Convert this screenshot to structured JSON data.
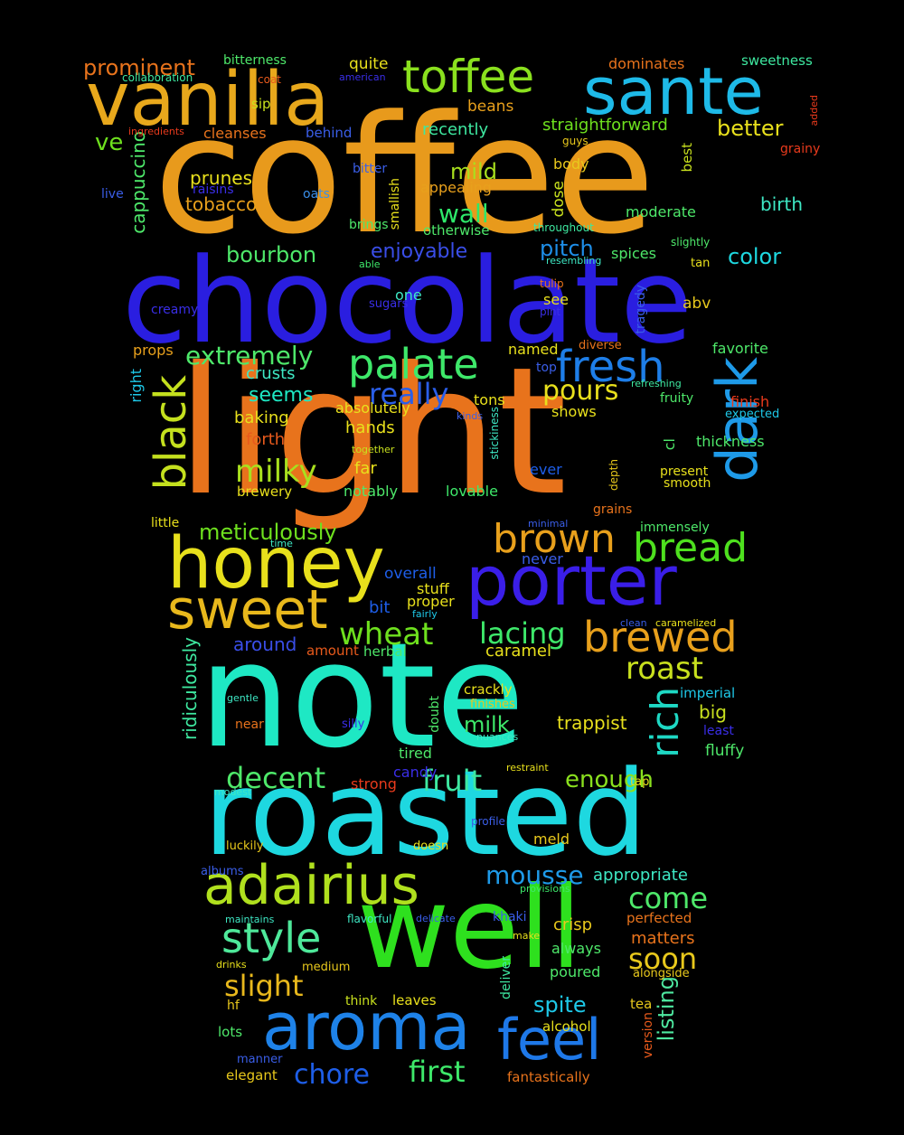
{
  "words": [
    {
      "text": "coffee",
      "color": "#e89a1c"
    },
    {
      "text": "chocolate",
      "color": "#2a1ee0"
    },
    {
      "text": "light",
      "color": "#e8731c"
    },
    {
      "text": "note",
      "color": "#1ee8c4"
    },
    {
      "text": "roasted",
      "color": "#1ed8e0"
    },
    {
      "text": "well",
      "color": "#2ee01e"
    },
    {
      "text": "vanilla",
      "color": "#e8a81c"
    },
    {
      "text": "sante",
      "color": "#1ebae8"
    },
    {
      "text": "toffee",
      "color": "#8ae01e"
    },
    {
      "text": "honey",
      "color": "#e8e01c"
    },
    {
      "text": "porter",
      "color": "#3a1ee8"
    },
    {
      "text": "dark",
      "color": "#1e9ae8"
    },
    {
      "text": "aroma",
      "color": "#1e82e8"
    },
    {
      "text": "adairius",
      "color": "#b0e01e"
    },
    {
      "text": "sweet",
      "color": "#e8b81c"
    },
    {
      "text": "feel",
      "color": "#1e78e8"
    },
    {
      "text": "palate",
      "color": "#3ee86a"
    },
    {
      "text": "brewed",
      "color": "#e8a01c"
    },
    {
      "text": "fresh",
      "color": "#1e7ee8"
    },
    {
      "text": "black",
      "color": "#c4e01e"
    },
    {
      "text": "bread",
      "color": "#4ee01e"
    },
    {
      "text": "brown",
      "color": "#e8a01c"
    },
    {
      "text": "style",
      "color": "#4ee89a"
    },
    {
      "text": "milky",
      "color": "#a8e01e"
    },
    {
      "text": "wheat",
      "color": "#6ee01e"
    },
    {
      "text": "rich",
      "color": "#1ed8c4"
    },
    {
      "text": "roast",
      "color": "#c8e01e"
    },
    {
      "text": "lacing",
      "color": "#3ee86a"
    },
    {
      "text": "come",
      "color": "#4ee86a"
    },
    {
      "text": "soon",
      "color": "#e8c81c"
    },
    {
      "text": "slight",
      "color": "#e8b81c"
    },
    {
      "text": "decent",
      "color": "#4ee86a"
    },
    {
      "text": "mousse",
      "color": "#1e9ae8"
    },
    {
      "text": "fruit",
      "color": "#3ee8a0"
    },
    {
      "text": "first",
      "color": "#3ee86a"
    },
    {
      "text": "chore",
      "color": "#1e5ee8"
    },
    {
      "text": "extremely",
      "color": "#4ee86a"
    },
    {
      "text": "really",
      "color": "#2a5ee8"
    },
    {
      "text": "pours",
      "color": "#e8e01c"
    },
    {
      "text": "wall",
      "color": "#2ee86a"
    },
    {
      "text": "enough",
      "color": "#8ae01e"
    },
    {
      "text": "meticulously",
      "color": "#6ee01e"
    },
    {
      "text": "bourbon",
      "color": "#4ee86a"
    },
    {
      "text": "prominent",
      "color": "#e8731c"
    },
    {
      "text": "better",
      "color": "#e8e01c"
    },
    {
      "text": "ve",
      "color": "#6ee01e"
    },
    {
      "text": "mild",
      "color": "#a8e01e"
    },
    {
      "text": "enjoyable",
      "color": "#3a4ee8"
    },
    {
      "text": "pitch",
      "color": "#1e8ee8"
    },
    {
      "text": "color",
      "color": "#1ed8e0"
    },
    {
      "text": "spite",
      "color": "#1ec8e8"
    },
    {
      "text": "listing",
      "color": "#4ee8a0"
    },
    {
      "text": "milk",
      "color": "#3ee86a"
    },
    {
      "text": "seems",
      "color": "#1ee8c4"
    },
    {
      "text": "ridiculously",
      "color": "#3ee8a0"
    },
    {
      "text": "cappuccino",
      "color": "#4ee86a"
    },
    {
      "text": "tobacco",
      "color": "#e8a01c"
    },
    {
      "text": "prunes",
      "color": "#e8e01c"
    },
    {
      "text": "straightforward",
      "color": "#6ee01e"
    },
    {
      "text": "crusts",
      "color": "#3ee8c4"
    },
    {
      "text": "hands",
      "color": "#e8e01c"
    },
    {
      "text": "baking",
      "color": "#e8e01c"
    },
    {
      "text": "forth",
      "color": "#e85a1c"
    },
    {
      "text": "around",
      "color": "#3a4ee8"
    },
    {
      "text": "trappist",
      "color": "#e8e01c"
    },
    {
      "text": "caramel",
      "color": "#e8e01c"
    },
    {
      "text": "crisp",
      "color": "#e8c81c"
    },
    {
      "text": "matters",
      "color": "#e8731c"
    },
    {
      "text": "appropriate",
      "color": "#3ee8c4"
    },
    {
      "text": "big",
      "color": "#c8e01e"
    },
    {
      "text": "fluffy",
      "color": "#4ee86a"
    },
    {
      "text": "recently",
      "color": "#3ee8a0"
    },
    {
      "text": "beans",
      "color": "#e8a01c"
    },
    {
      "text": "quite",
      "color": "#e8e01c"
    },
    {
      "text": "bitterness",
      "color": "#4ee86a"
    },
    {
      "text": "dominates",
      "color": "#e8731c"
    },
    {
      "text": "sweetness",
      "color": "#3ee8a0"
    },
    {
      "text": "birth",
      "color": "#3ee8c4"
    },
    {
      "text": "moderate",
      "color": "#4ee86a"
    },
    {
      "text": "body",
      "color": "#e8c81c"
    },
    {
      "text": "appealing",
      "color": "#e8a01c"
    },
    {
      "text": "otherwise",
      "color": "#4ee86a"
    },
    {
      "text": "brings",
      "color": "#4ee86a"
    },
    {
      "text": "dose",
      "color": "#c8e01e"
    },
    {
      "text": "smallish",
      "color": "#e8e01c"
    },
    {
      "text": "cleanses",
      "color": "#e8731c"
    },
    {
      "text": "behind",
      "color": "#3a5ee8"
    },
    {
      "text": "sip",
      "color": "#c8e01e"
    },
    {
      "text": "coat",
      "color": "#e85a1c"
    },
    {
      "text": "american",
      "color": "#3a2ee8"
    },
    {
      "text": "collaboration",
      "color": "#3ee8a0"
    },
    {
      "text": "ingredients",
      "color": "#e83a1c"
    },
    {
      "text": "added",
      "color": "#e83a1c"
    },
    {
      "text": "grainy",
      "color": "#e83a1c"
    },
    {
      "text": "best",
      "color": "#c8e01e"
    },
    {
      "text": "guys",
      "color": "#e8c81c"
    },
    {
      "text": "bitter",
      "color": "#3a5ee8"
    },
    {
      "text": "raisins",
      "color": "#3a2ee8"
    },
    {
      "text": "live",
      "color": "#3a5ee8"
    },
    {
      "text": "oats",
      "color": "#3a8ee8"
    },
    {
      "text": "throughout",
      "color": "#3ee8a0"
    },
    {
      "text": "slightly",
      "color": "#4ee86a"
    },
    {
      "text": "spices",
      "color": "#4ee86a"
    },
    {
      "text": "resembling",
      "color": "#3ee8c4"
    },
    {
      "text": "tan",
      "color": "#e8e01c"
    },
    {
      "text": "able",
      "color": "#3ee86a"
    },
    {
      "text": "one",
      "color": "#3ee8c4"
    },
    {
      "text": "sugars",
      "color": "#3a2ee8"
    },
    {
      "text": "tulip",
      "color": "#e8731c"
    },
    {
      "text": "see",
      "color": "#e8e01c"
    },
    {
      "text": "pint",
      "color": "#3a2ee8"
    },
    {
      "text": "creamy",
      "color": "#3a2ee8"
    },
    {
      "text": "abv",
      "color": "#e8c81c"
    },
    {
      "text": "tragedy",
      "color": "#3a5ee8"
    },
    {
      "text": "props",
      "color": "#e8a01c"
    },
    {
      "text": "named",
      "color": "#e8e01c"
    },
    {
      "text": "diverse",
      "color": "#e8731c"
    },
    {
      "text": "favorite",
      "color": "#4ee86a"
    },
    {
      "text": "right",
      "color": "#1ec8e8"
    },
    {
      "text": "top",
      "color": "#3a5ee8"
    },
    {
      "text": "refreshing",
      "color": "#3ee8a0"
    },
    {
      "text": "tons",
      "color": "#e8e01c"
    },
    {
      "text": "fruity",
      "color": "#4ee86a"
    },
    {
      "text": "finish",
      "color": "#e83a1c"
    },
    {
      "text": "absolutely",
      "color": "#e8e01c"
    },
    {
      "text": "kinds",
      "color": "#3a5ee8"
    },
    {
      "text": "expected",
      "color": "#1ec8e8"
    },
    {
      "text": "shows",
      "color": "#e8e01c"
    },
    {
      "text": "stickiness",
      "color": "#3ee8c4"
    },
    {
      "text": "cl",
      "color": "#4ee86a"
    },
    {
      "text": "thickness",
      "color": "#4ee86a"
    },
    {
      "text": "together",
      "color": "#c8e01e"
    },
    {
      "text": "far",
      "color": "#e8e01c"
    },
    {
      "text": "ever",
      "color": "#1e5ee8"
    },
    {
      "text": "depth",
      "color": "#e8c81c"
    },
    {
      "text": "present",
      "color": "#e8e01c"
    },
    {
      "text": "smooth",
      "color": "#e8e01c"
    },
    {
      "text": "brewery",
      "color": "#e8e01c"
    },
    {
      "text": "notably",
      "color": "#4ee86a"
    },
    {
      "text": "lovable",
      "color": "#3ee86a"
    },
    {
      "text": "grains",
      "color": "#e8731c"
    },
    {
      "text": "little",
      "color": "#e8e01c"
    },
    {
      "text": "minimal",
      "color": "#3a5ee8"
    },
    {
      "text": "immensely",
      "color": "#4ee86a"
    },
    {
      "text": "time",
      "color": "#3ee8c4"
    },
    {
      "text": "never",
      "color": "#3a5ee8"
    },
    {
      "text": "overall",
      "color": "#1e5ee8"
    },
    {
      "text": "stuff",
      "color": "#e8e01c"
    },
    {
      "text": "bit",
      "color": "#1e5ee8"
    },
    {
      "text": "proper",
      "color": "#e8e01c"
    },
    {
      "text": "fairly",
      "color": "#1ec8e8"
    },
    {
      "text": "clean",
      "color": "#3a5ee8"
    },
    {
      "text": "caramelized",
      "color": "#e8e01c"
    },
    {
      "text": "herbal",
      "color": "#4ee86a"
    },
    {
      "text": "amount",
      "color": "#e85a1c"
    },
    {
      "text": "imperial",
      "color": "#1ec8e8"
    },
    {
      "text": "crackly",
      "color": "#e8e01c"
    },
    {
      "text": "finishes",
      "color": "#e8c81c"
    },
    {
      "text": "gentle",
      "color": "#3ee8c4"
    },
    {
      "text": "near",
      "color": "#e8731c"
    },
    {
      "text": "silly",
      "color": "#3a2ee8"
    },
    {
      "text": "doubt",
      "color": "#4ee86a"
    },
    {
      "text": "nuances",
      "color": "#3ee8c4"
    },
    {
      "text": "least",
      "color": "#3a2ee8"
    },
    {
      "text": "tired",
      "color": "#4ee86a"
    },
    {
      "text": "restraint",
      "color": "#e8e01c"
    },
    {
      "text": "candy",
      "color": "#3a2ee8"
    },
    {
      "text": "strong",
      "color": "#e83a1c"
    },
    {
      "text": "tap",
      "color": "#e8e01c"
    },
    {
      "text": "modest",
      "color": "#3ee8c4"
    },
    {
      "text": "profile",
      "color": "#3a5ee8"
    },
    {
      "text": "luckily",
      "color": "#e8c81c"
    },
    {
      "text": "doesn",
      "color": "#e8e01c"
    },
    {
      "text": "meld",
      "color": "#e8c81c"
    },
    {
      "text": "albums",
      "color": "#3a5ee8"
    },
    {
      "text": "provisions",
      "color": "#3ee86a"
    },
    {
      "text": "maintains",
      "color": "#3ee8c4"
    },
    {
      "text": "flavorful",
      "color": "#3ee8c4"
    },
    {
      "text": "delicate",
      "color": "#3a5ee8"
    },
    {
      "text": "khaki",
      "color": "#3a5ee8"
    },
    {
      "text": "perfected",
      "color": "#e8731c"
    },
    {
      "text": "make",
      "color": "#e8e01c"
    },
    {
      "text": "always",
      "color": "#4ee86a"
    },
    {
      "text": "drinks",
      "color": "#e8e01c"
    },
    {
      "text": "medium",
      "color": "#e8c81c"
    },
    {
      "text": "poured",
      "color": "#4ee86a"
    },
    {
      "text": "alongside",
      "color": "#e8c81c"
    },
    {
      "text": "deliver",
      "color": "#3ee8a0"
    },
    {
      "text": "think",
      "color": "#c8e01e"
    },
    {
      "text": "leaves",
      "color": "#e8e01c"
    },
    {
      "text": "hf",
      "color": "#e8c81c"
    },
    {
      "text": "tea",
      "color": "#e8c81c"
    },
    {
      "text": "version",
      "color": "#e85a1c"
    },
    {
      "text": "lots",
      "color": "#4ee86a"
    },
    {
      "text": "alcohol",
      "color": "#e8e01c"
    },
    {
      "text": "manner",
      "color": "#3a5ee8"
    },
    {
      "text": "elegant",
      "color": "#e8c81c"
    },
    {
      "text": "fantastically",
      "color": "#e8731c"
    }
  ]
}
